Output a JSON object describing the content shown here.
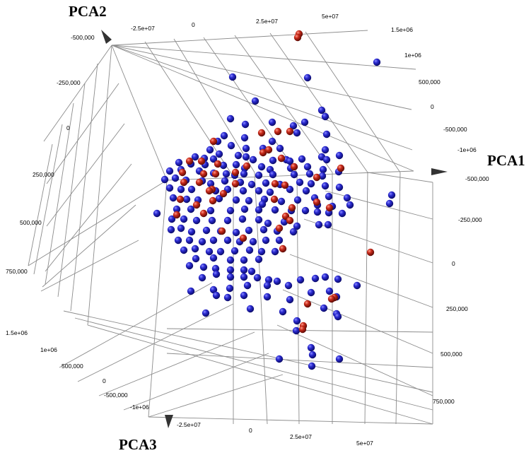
{
  "chart_data": {
    "type": "scatter",
    "projection": "3d",
    "axes": {
      "x": {
        "title": "PCA1"
      },
      "y": {
        "title": "PCA2"
      },
      "z": {
        "title": "PCA3"
      }
    },
    "tick_labels": {
      "top_pca1": [
        "-2.5e+07",
        "0",
        "2.5e+07",
        "5e+07"
      ],
      "bottom_pca1": [
        "-2.5e+07",
        "0",
        "2.5e+07",
        "5e+07"
      ],
      "left_pca2": [
        "-500,000",
        "-250,000",
        "0",
        "250,000",
        "500,000",
        "750,000"
      ],
      "right_upper": [
        "1.5e+06",
        "1e+06",
        "500,000",
        "0",
        "-500,000",
        "-1e+06"
      ],
      "right_lower": [
        "-500,000",
        "-250,000",
        "0",
        "250,000",
        "500,000",
        "750,000"
      ],
      "left_bottom_pca3": [
        "1.5e+06",
        "1e+06",
        "500,000",
        "0",
        "-500,000",
        "-1e+06"
      ]
    },
    "grid": true,
    "colors": {
      "blue": "#1a1aa8",
      "red": "#a81a10"
    },
    "series": [
      {
        "color": "blue",
        "points": [
          [
            533,
            88
          ],
          [
            329,
            109
          ],
          [
            435,
            110
          ],
          [
            361,
            143
          ],
          [
            455,
            156
          ],
          [
            326,
            168
          ],
          [
            385,
            173
          ],
          [
            431,
            173
          ],
          [
            460,
            165
          ],
          [
            347,
            176
          ],
          [
            415,
            178
          ],
          [
            420,
            188
          ],
          [
            462,
            190
          ],
          [
            317,
            192
          ],
          [
            346,
            195
          ],
          [
            308,
            200
          ],
          [
            385,
            200
          ],
          [
            327,
            206
          ],
          [
            297,
            212
          ],
          [
            348,
            210
          ],
          [
            372,
            210
          ],
          [
            396,
            210
          ],
          [
            460,
            212
          ],
          [
            310,
            218
          ],
          [
            337,
            220
          ],
          [
            276,
            222
          ],
          [
            289,
            224
          ],
          [
            302,
            225
          ],
          [
            358,
            226
          ],
          [
            386,
            227
          ],
          [
            405,
            226
          ],
          [
            427,
            225
          ],
          [
            455,
            222
          ],
          [
            480,
            220
          ],
          [
            253,
            230
          ],
          [
            270,
            232
          ],
          [
            290,
            233
          ],
          [
            316,
            234
          ],
          [
            334,
            233
          ],
          [
            346,
            238
          ],
          [
            370,
            236
          ],
          [
            382,
            240
          ],
          [
            411,
            238
          ],
          [
            435,
            236
          ],
          [
            457,
            240
          ],
          [
            462,
            226
          ],
          [
            240,
            242
          ],
          [
            256,
            240
          ],
          [
            282,
            242
          ],
          [
            302,
            245
          ],
          [
            320,
            246
          ],
          [
            345,
            246
          ],
          [
            366,
            248
          ],
          [
            386,
            247
          ],
          [
            416,
            247
          ],
          [
            438,
            246
          ],
          [
            456,
            249
          ],
          [
            479,
            243
          ],
          [
            233,
            254
          ],
          [
            248,
            252
          ],
          [
            263,
            255
          ],
          [
            286,
            256
          ],
          [
            298,
            260
          ],
          [
            318,
            256
          ],
          [
            340,
            258
          ],
          [
            356,
            261
          ],
          [
            376,
            259
          ],
          [
            396,
            261
          ],
          [
            424,
            258
          ],
          [
            440,
            260
          ],
          [
            460,
            263
          ],
          [
            480,
            265
          ],
          [
            240,
            266
          ],
          [
            256,
            268
          ],
          [
            271,
            268
          ],
          [
            305,
            270
          ],
          [
            322,
            268
          ],
          [
            344,
            270
          ],
          [
            366,
            270
          ],
          [
            382,
            272
          ],
          [
            410,
            268
          ],
          [
            433,
            270
          ],
          [
            445,
            280
          ],
          [
            465,
            278
          ],
          [
            491,
            280
          ],
          [
            554,
            276
          ],
          [
            551,
            288
          ],
          [
            245,
            280
          ],
          [
            264,
            282
          ],
          [
            280,
            283
          ],
          [
            310,
            281
          ],
          [
            334,
            283
          ],
          [
            352,
            284
          ],
          [
            374,
            282
          ],
          [
            398,
            285
          ],
          [
            421,
            283
          ],
          [
            449,
            290
          ],
          [
            470,
            292
          ],
          [
            495,
            290
          ],
          [
            222,
            302
          ],
          [
            250,
            296
          ],
          [
            270,
            296
          ],
          [
            298,
            298
          ],
          [
            326,
            298
          ],
          [
            346,
            296
          ],
          [
            366,
            297
          ],
          [
            389,
            297
          ],
          [
            412,
            298
          ],
          [
            432,
            298
          ],
          [
            449,
            300
          ],
          [
            465,
            301
          ],
          [
            484,
            302
          ],
          [
            243,
            310
          ],
          [
            260,
            310
          ],
          [
            278,
            312
          ],
          [
            300,
            312
          ],
          [
            322,
            312
          ],
          [
            343,
            310
          ],
          [
            366,
            311
          ],
          [
            379,
            316
          ],
          [
            402,
            314
          ],
          [
            420,
            320
          ],
          [
            451,
            318
          ],
          [
            464,
            318
          ],
          [
            242,
            325
          ],
          [
            256,
            323
          ],
          [
            271,
            328
          ],
          [
            292,
            326
          ],
          [
            312,
            327
          ],
          [
            334,
            329
          ],
          [
            352,
            326
          ],
          [
            373,
            325
          ],
          [
            392,
            327
          ],
          [
            415,
            328
          ],
          [
            252,
            340
          ],
          [
            268,
            340
          ],
          [
            286,
            342
          ],
          [
            302,
            340
          ],
          [
            322,
            340
          ],
          [
            339,
            342
          ],
          [
            358,
            342
          ],
          [
            376,
            340
          ],
          [
            395,
            340
          ],
          [
            260,
            354
          ],
          [
            276,
            352
          ],
          [
            296,
            356
          ],
          [
            312,
            356
          ],
          [
            332,
            355
          ],
          [
            353,
            354
          ],
          [
            370,
            356
          ],
          [
            389,
            356
          ],
          [
            277,
            366
          ],
          [
            302,
            365
          ],
          [
            326,
            368
          ],
          [
            345,
            368
          ],
          [
            366,
            367
          ],
          [
            268,
            376
          ],
          [
            288,
            378
          ],
          [
            305,
            380
          ],
          [
            326,
            382
          ],
          [
            345,
            382
          ],
          [
            356,
            384
          ],
          [
            286,
            393
          ],
          [
            306,
            388
          ],
          [
            326,
            392
          ],
          [
            345,
            392
          ],
          [
            364,
            393
          ],
          [
            380,
            396
          ],
          [
            302,
            410
          ],
          [
            325,
            408
          ],
          [
            350,
            404
          ],
          [
            378,
            404
          ],
          [
            392,
            398
          ],
          [
            408,
            404
          ],
          [
            425,
            396
          ],
          [
            446,
            394
          ],
          [
            460,
            392
          ],
          [
            478,
            395
          ],
          [
            505,
            404
          ],
          [
            270,
            412
          ],
          [
            306,
            418
          ],
          [
            322,
            421
          ],
          [
            345,
            418
          ],
          [
            378,
            420
          ],
          [
            410,
            424
          ],
          [
            440,
            414
          ],
          [
            466,
            412
          ],
          [
            476,
            420
          ],
          [
            291,
            443
          ],
          [
            354,
            437
          ],
          [
            400,
            441
          ],
          [
            458,
            436
          ],
          [
            476,
            444
          ],
          [
            478,
            448
          ],
          [
            420,
            454
          ],
          [
            419,
            468
          ],
          [
            440,
            492
          ],
          [
            442,
            502
          ],
          [
            441,
            518
          ],
          [
            395,
            508
          ],
          [
            480,
            508
          ],
          [
            348,
            222
          ],
          [
            332,
            248
          ],
          [
            410,
            228
          ],
          [
            371,
            289
          ]
        ]
      },
      {
        "color": "red",
        "points": [
          [
            423,
            48
          ],
          [
            421,
            53
          ],
          [
            370,
            188
          ],
          [
            393,
            186
          ],
          [
            410,
            186
          ],
          [
            302,
            200
          ],
          [
            372,
            216
          ],
          [
            380,
            212
          ],
          [
            268,
            228
          ],
          [
            285,
            228
          ],
          [
            308,
            232
          ],
          [
            398,
            224
          ],
          [
            349,
            235
          ],
          [
            482,
            238
          ],
          [
            258,
            244
          ],
          [
            288,
            246
          ],
          [
            305,
            246
          ],
          [
            333,
            244
          ],
          [
            416,
            236
          ],
          [
            448,
            251
          ],
          [
            260,
            258
          ],
          [
            282,
            258
          ],
          [
            300,
            268
          ],
          [
            333,
            260
          ],
          [
            389,
            260
          ],
          [
            403,
            262
          ],
          [
            296,
            270
          ],
          [
            316,
            274
          ],
          [
            255,
            282
          ],
          [
            301,
            284
          ],
          [
            388,
            282
          ],
          [
            448,
            286
          ],
          [
            278,
            290
          ],
          [
            413,
            294
          ],
          [
            466,
            294
          ],
          [
            288,
            302
          ],
          [
            404,
            306
          ],
          [
            250,
            304
          ],
          [
            410,
            312
          ],
          [
            314,
            327
          ],
          [
            395,
            323
          ],
          [
            344,
            337
          ],
          [
            400,
            352
          ],
          [
            524,
            357
          ],
          [
            473,
            421
          ],
          [
            435,
            430
          ],
          [
            429,
            461
          ],
          [
            428,
            466
          ],
          [
            469,
            423
          ]
        ]
      }
    ]
  }
}
